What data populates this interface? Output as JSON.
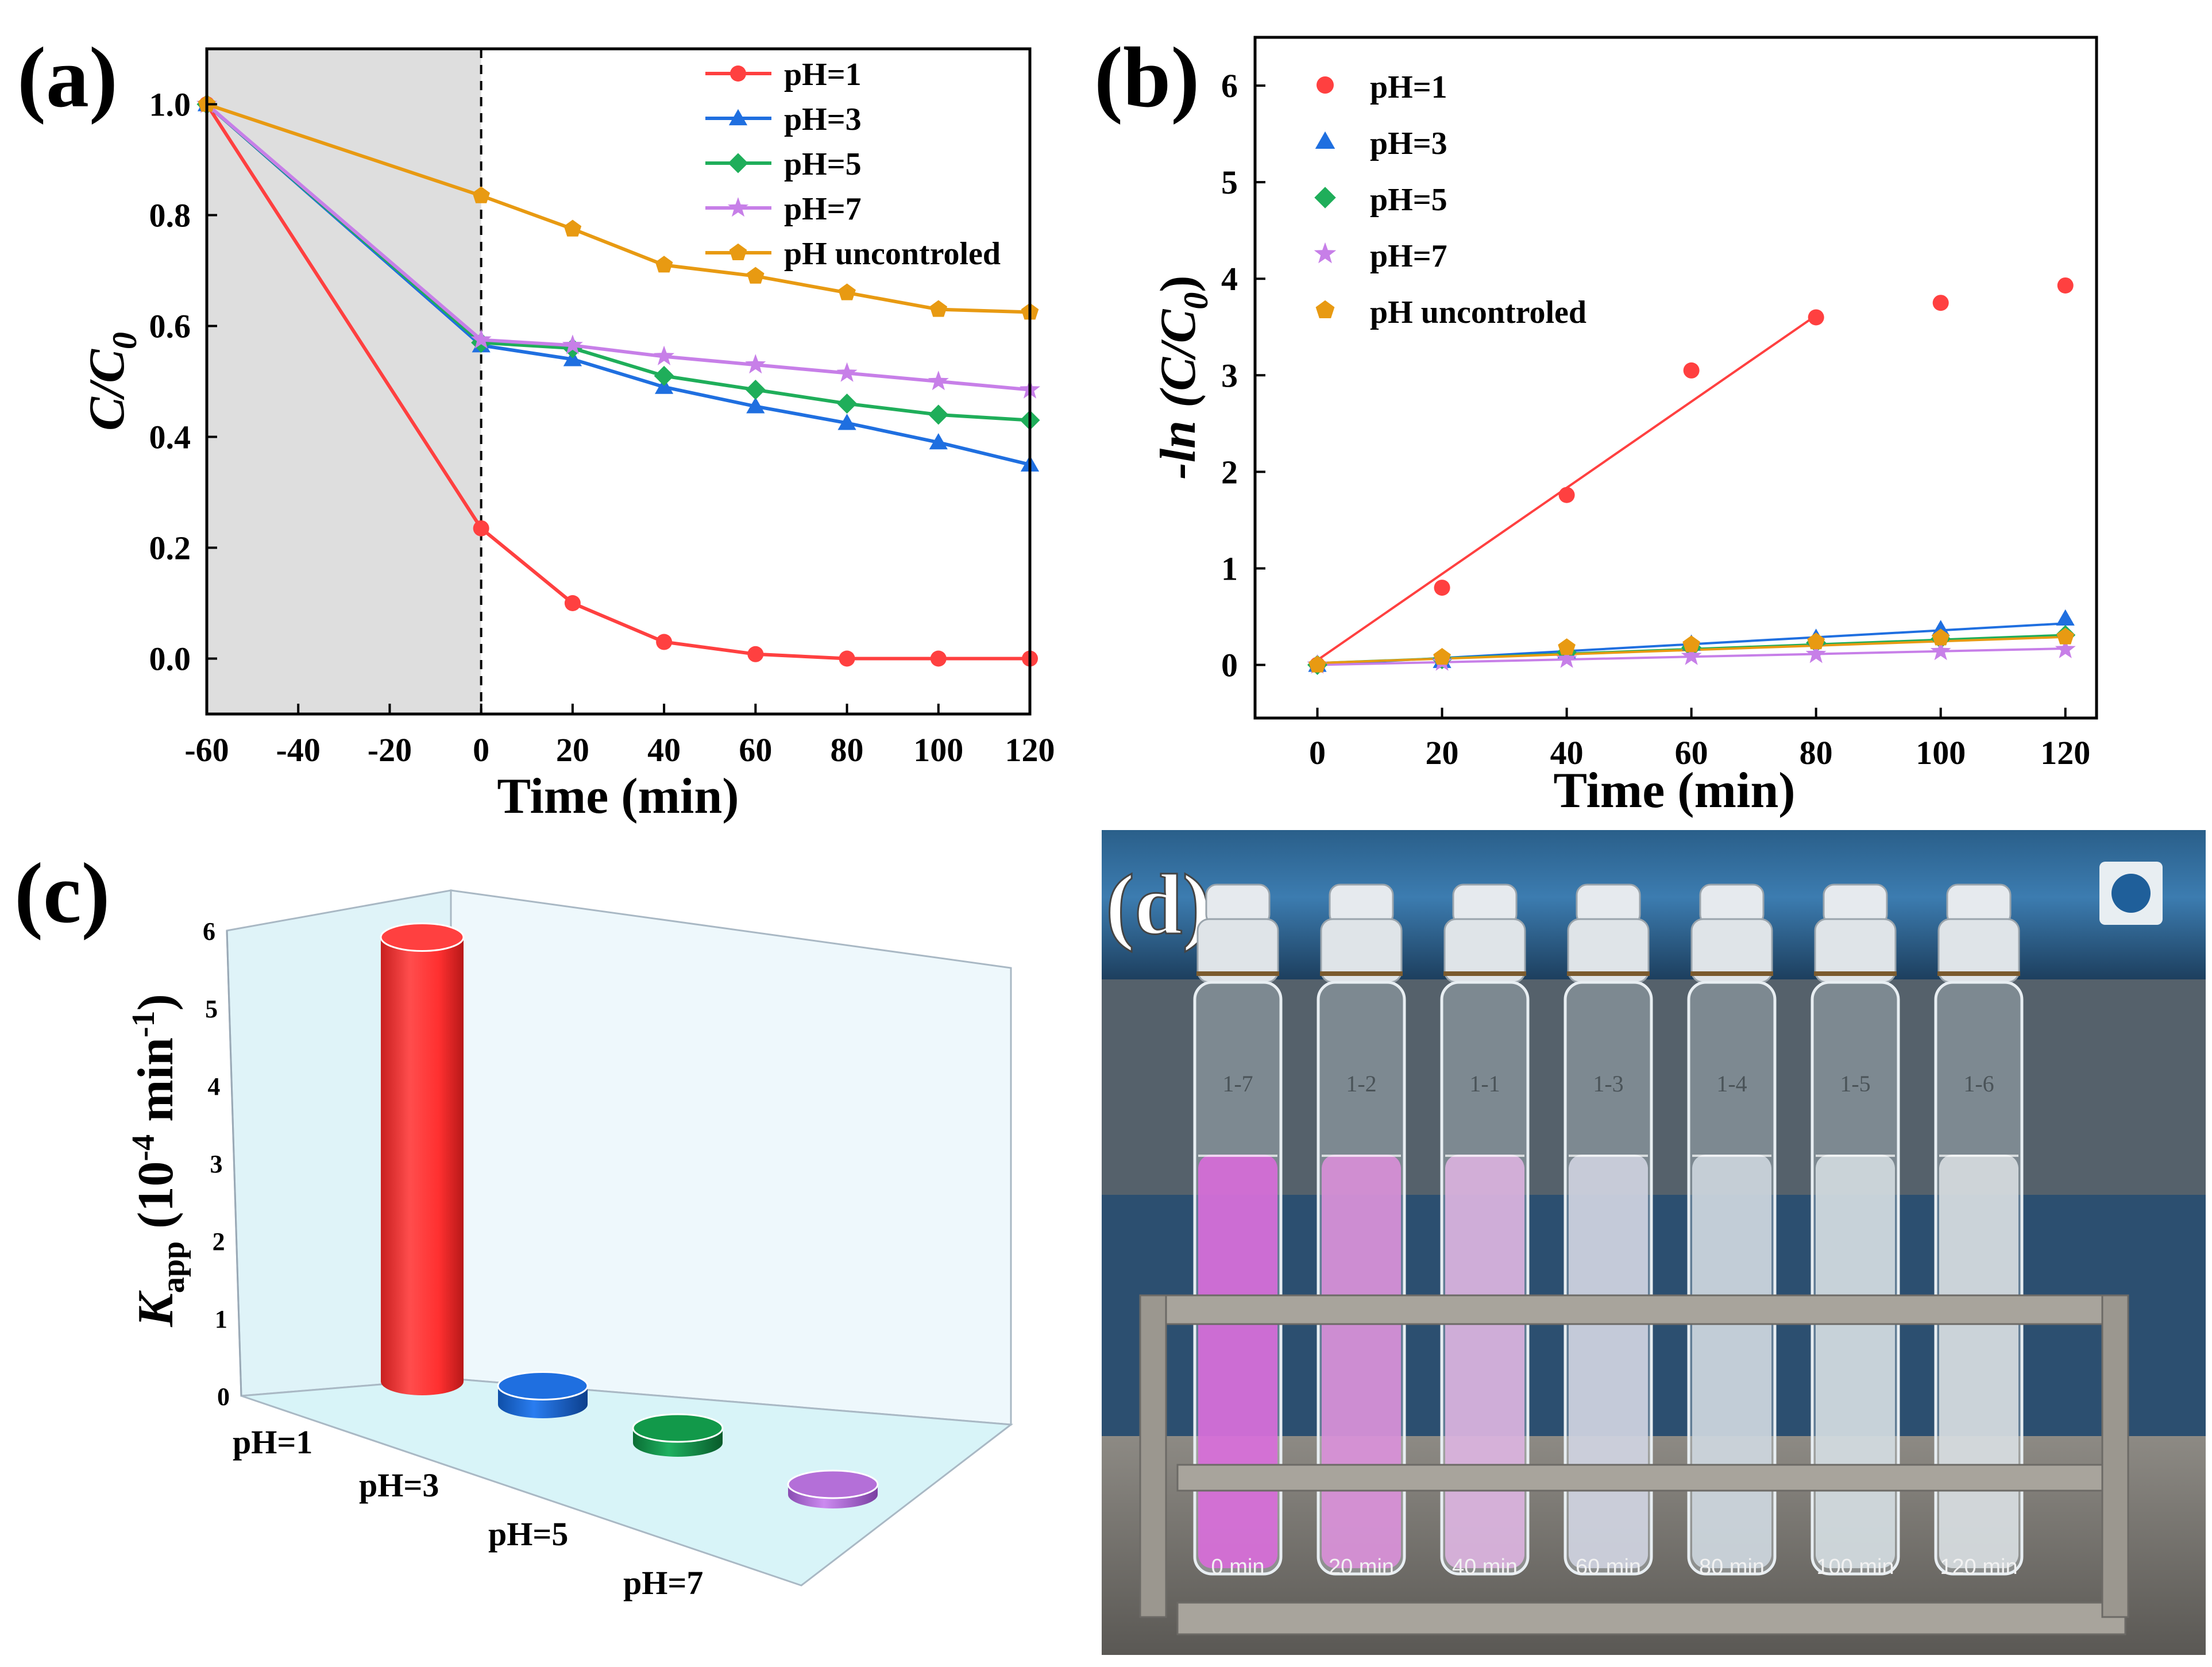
{
  "panels": {
    "a": {
      "letter": "(a)"
    },
    "b": {
      "letter": "(b)"
    },
    "c": {
      "letter": "(c)"
    },
    "d": {
      "letter": "(d)"
    }
  },
  "colors": {
    "pH1": "#ff4040",
    "pH3": "#1f6fe0",
    "pH5": "#1fae5a",
    "pH7": "#c77fe8",
    "uncontrolled": "#e89a12",
    "shade": "#dedede",
    "bar_c_pH5": "#12994a",
    "bar_c_pH7": "#b46fd8"
  },
  "chart_data": [
    {
      "id": "a",
      "type": "line",
      "xlabel": "Time (min)",
      "ylabel": "C/C0",
      "ylabel_main": "C/C",
      "ylabel_sub": "0",
      "xlim": [
        -60,
        120
      ],
      "ylim": [
        -0.1,
        1.1
      ],
      "xticks": [
        -60,
        -40,
        -20,
        0,
        20,
        40,
        60,
        80,
        100,
        120
      ],
      "yticks": [
        0.0,
        0.2,
        0.4,
        0.6,
        0.8,
        1.0
      ],
      "ytick_labels": [
        "0.0",
        "0.2",
        "0.4",
        "0.6",
        "0.8",
        "1.0"
      ],
      "shaded_region": [
        -60,
        0
      ],
      "dashed_line_x": 0,
      "legend_position": "top-right",
      "series": [
        {
          "name": "pH=1",
          "marker": "circle",
          "color_key": "pH1",
          "x": [
            -60,
            0,
            20,
            40,
            60,
            80,
            100,
            120
          ],
          "y": [
            1.0,
            0.235,
            0.1,
            0.03,
            0.008,
            0.0,
            0.0,
            0.0
          ]
        },
        {
          "name": "pH=3",
          "marker": "triangle",
          "color_key": "pH3",
          "x": [
            -60,
            0,
            20,
            40,
            60,
            80,
            100,
            120
          ],
          "y": [
            1.0,
            0.565,
            0.54,
            0.49,
            0.455,
            0.425,
            0.39,
            0.35
          ]
        },
        {
          "name": "pH=5",
          "marker": "diamond",
          "color_key": "pH5",
          "x": [
            -60,
            0,
            20,
            40,
            60,
            80,
            100,
            120
          ],
          "y": [
            1.0,
            0.57,
            0.56,
            0.51,
            0.485,
            0.46,
            0.44,
            0.43
          ]
        },
        {
          "name": "pH=7",
          "marker": "star",
          "color_key": "pH7",
          "x": [
            -60,
            0,
            20,
            40,
            60,
            80,
            100,
            120
          ],
          "y": [
            1.0,
            0.575,
            0.565,
            0.545,
            0.53,
            0.515,
            0.5,
            0.485
          ]
        },
        {
          "name": "pH uncontroled",
          "marker": "pentagon",
          "color_key": "uncontrolled",
          "x": [
            -60,
            0,
            20,
            40,
            60,
            80,
            100,
            120
          ],
          "y": [
            1.0,
            0.835,
            0.775,
            0.71,
            0.69,
            0.66,
            0.63,
            0.625
          ]
        }
      ]
    },
    {
      "id": "b",
      "type": "scatter",
      "xlabel": "Time (min)",
      "ylabel": "-ln (C/C0)",
      "ylabel_main": "-ln (C/C",
      "ylabel_sub": "0",
      "ylabel_end": ")",
      "xlim": [
        -10,
        125
      ],
      "ylim": [
        -0.55,
        6.5
      ],
      "xticks": [
        0,
        20,
        40,
        60,
        80,
        100,
        120
      ],
      "yticks": [
        0,
        1,
        2,
        3,
        4,
        5,
        6
      ],
      "legend_position": "top-left",
      "series": [
        {
          "name": "pH=1",
          "marker": "circle",
          "color_key": "pH1",
          "x": [
            0,
            20,
            40,
            60,
            80,
            100,
            120
          ],
          "y": [
            0.0,
            0.8,
            1.76,
            3.05,
            3.6,
            3.75,
            3.93
          ],
          "fit": {
            "x": [
              0,
              80
            ],
            "y": [
              0.05,
              3.62
            ]
          }
        },
        {
          "name": "pH=3",
          "marker": "triangle",
          "color_key": "pH3",
          "x": [
            0,
            20,
            40,
            60,
            80,
            100,
            120
          ],
          "y": [
            0.0,
            0.04,
            0.14,
            0.22,
            0.28,
            0.37,
            0.48
          ],
          "fit": {
            "x": [
              0,
              120
            ],
            "y": [
              0.0,
              0.43
            ]
          }
        },
        {
          "name": "pH=5",
          "marker": "diamond",
          "color_key": "pH5",
          "x": [
            0,
            20,
            40,
            60,
            80,
            100,
            120
          ],
          "y": [
            0.0,
            0.06,
            0.13,
            0.18,
            0.23,
            0.27,
            0.31
          ],
          "fit": {
            "x": [
              0,
              120
            ],
            "y": [
              0.02,
              0.31
            ]
          }
        },
        {
          "name": "pH=7",
          "marker": "star",
          "color_key": "pH7",
          "x": [
            0,
            20,
            40,
            60,
            80,
            100,
            120
          ],
          "y": [
            0.0,
            0.03,
            0.06,
            0.09,
            0.11,
            0.14,
            0.16
          ],
          "fit": {
            "x": [
              0,
              120
            ],
            "y": [
              0.0,
              0.17
            ]
          }
        },
        {
          "name": "pH uncontroled",
          "marker": "pentagon",
          "color_key": "uncontrolled",
          "x": [
            0,
            20,
            40,
            60,
            80,
            100,
            120
          ],
          "y": [
            0.0,
            0.08,
            0.18,
            0.21,
            0.24,
            0.28,
            0.29
          ],
          "fit": {
            "x": [
              0,
              120
            ],
            "y": [
              0.02,
              0.29
            ]
          }
        }
      ]
    },
    {
      "id": "c",
      "type": "bar",
      "subtype": "3d-cylinder",
      "ylabel": "Kapp (10-4 min-1)",
      "ylabel_main": "K",
      "ylabel_sub": "app",
      "ylabel_rest": " (10",
      "ylabel_sup": "-4",
      "ylabel_unit": " min",
      "ylabel_sup2": "-1",
      "ylabel_close": ")",
      "ylim": [
        0,
        6
      ],
      "yticks": [
        0,
        1,
        2,
        3,
        4,
        5,
        6
      ],
      "categories": [
        "pH=1",
        "pH=3",
        "pH=5",
        "pH=7"
      ],
      "values": [
        5.95,
        0.25,
        0.2,
        0.12
      ],
      "color_keys": [
        "pH1",
        "pH3",
        "bar_c_pH5",
        "bar_c_pH7"
      ]
    }
  ],
  "photo": {
    "time_labels": [
      "0 min",
      "20 min",
      "40 min",
      "60 min",
      "80 min",
      "100 min",
      "120 min"
    ],
    "liquid_colors": [
      "#d86bd9",
      "#d98fd8",
      "#dbb2df",
      "#cfd3e0",
      "#cdd6de",
      "#d3dbe0",
      "#d7dde0"
    ],
    "tube_marks": [
      "1-7",
      "1-2",
      "1-1",
      "1-3",
      "1-4",
      "1-5",
      "1-6"
    ]
  }
}
